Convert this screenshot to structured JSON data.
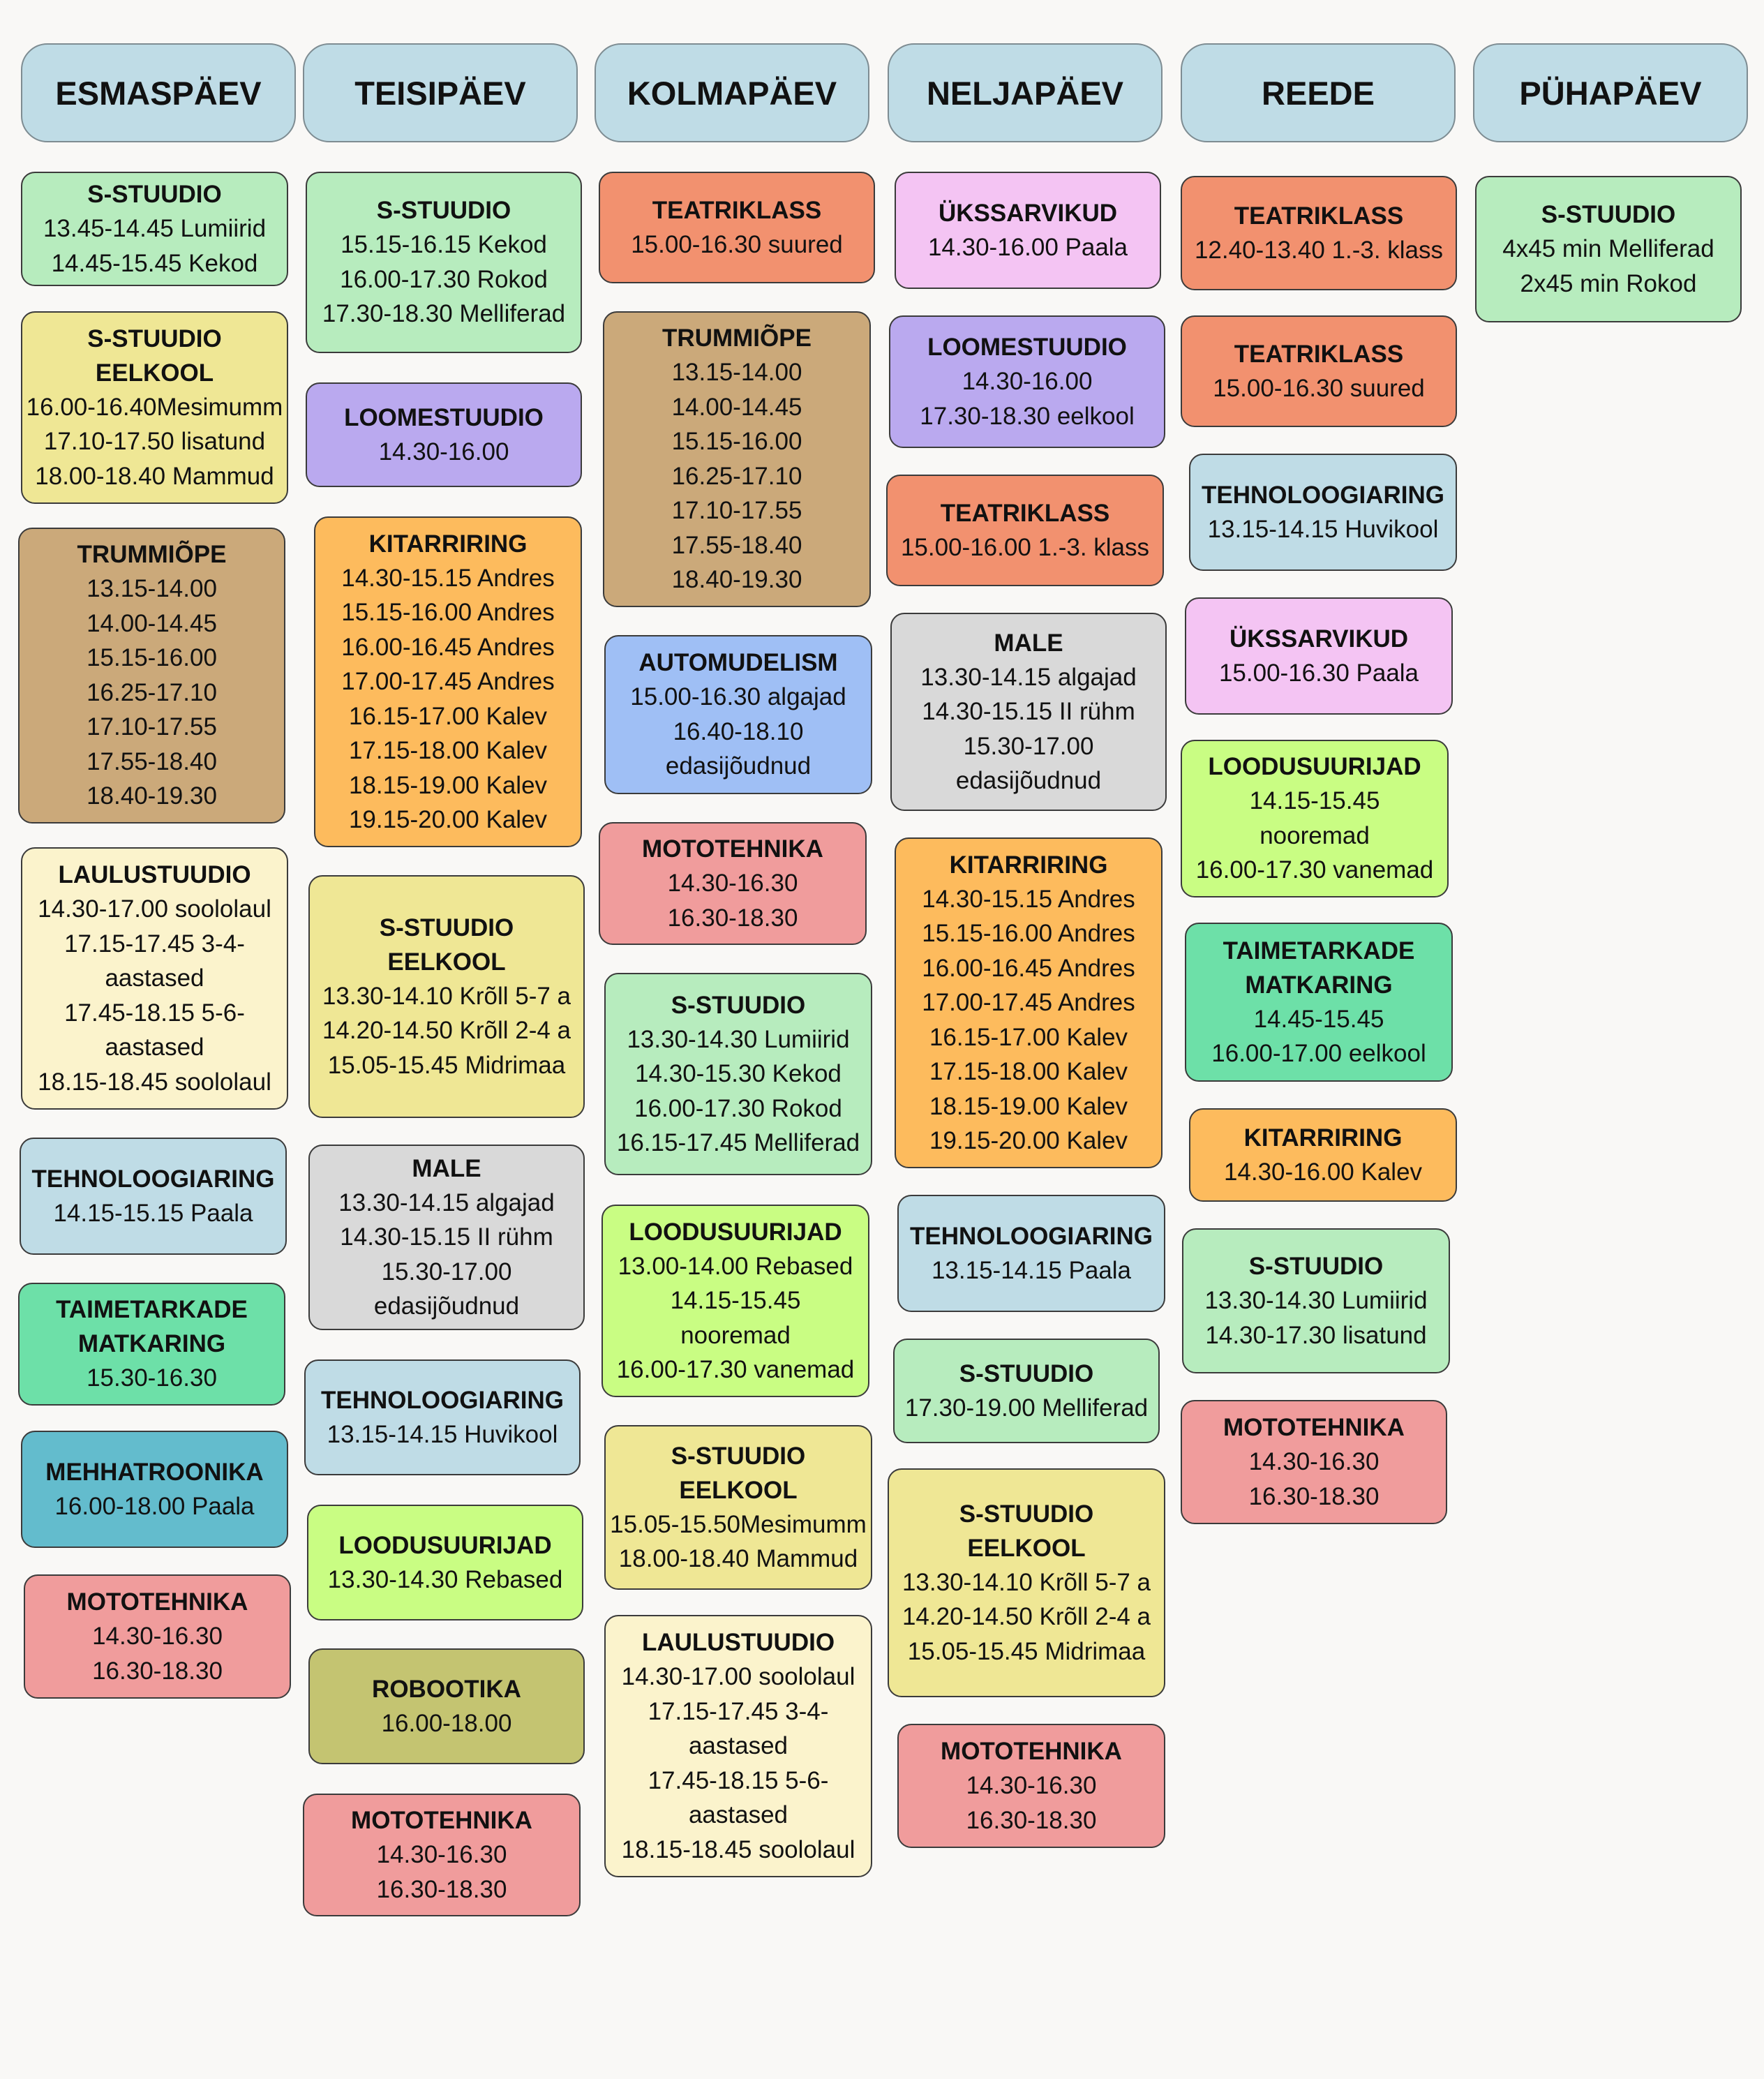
{
  "days": [
    {
      "name": "ESMASPÄEV",
      "cards": [
        {
          "title": "S-STUUDIO",
          "lines": [
            "13.45-14.45 Lumiirid",
            "14.45-15.45 Kekod"
          ]
        },
        {
          "title": "S-STUUDIO\nEELKOOL",
          "lines": [
            "16.00-16.40Mesimumm",
            "17.10-17.50 lisatund",
            "18.00-18.40 Mammud"
          ]
        },
        {
          "title": "TRUMMIÕPE",
          "lines": [
            "13.15-14.00",
            "14.00-14.45",
            "15.15-16.00",
            "16.25-17.10",
            "17.10-17.55",
            "17.55-18.40",
            "18.40-19.30"
          ]
        },
        {
          "title": "LAULUSTUUDIO",
          "lines": [
            "14.30-17.00 soololaul",
            "17.15-17.45 3-4-",
            "aastased",
            "17.45-18.15 5-6-",
            "aastased",
            "18.15-18.45 soololaul"
          ]
        },
        {
          "title": "TEHNOLOOGIARING",
          "lines": [
            "14.15-15.15 Paala"
          ]
        },
        {
          "title": "TAIMETARKADE\nMATKARING",
          "lines": [
            "15.30-16.30"
          ]
        },
        {
          "title": "MEHHATROONIKA",
          "lines": [
            "16.00-18.00 Paala"
          ]
        },
        {
          "title": "MOTOTEHNIKA",
          "lines": [
            "14.30-16.30",
            "16.30-18.30"
          ]
        }
      ]
    },
    {
      "name": "TEISIPÄEV",
      "cards": [
        {
          "title": "S-STUUDIO",
          "lines": [
            "15.15-16.15 Kekod",
            "16.00-17.30 Rokod",
            "17.30-18.30 Melliferad"
          ]
        },
        {
          "title": "LOOMESTUUDIO",
          "lines": [
            "14.30-16.00"
          ]
        },
        {
          "title": "KITARRIRING",
          "lines": [
            "14.30-15.15 Andres",
            "15.15-16.00 Andres",
            "16.00-16.45 Andres",
            "17.00-17.45 Andres",
            "16.15-17.00 Kalev",
            "17.15-18.00 Kalev",
            "18.15-19.00 Kalev",
            "19.15-20.00 Kalev"
          ]
        },
        {
          "title": "S-STUUDIO\nEELKOOL",
          "lines": [
            "13.30-14.10 Krõll 5-7 a",
            "14.20-14.50 Krõll 2-4 a",
            "15.05-15.45 Midrimaa"
          ]
        },
        {
          "title": "MALE",
          "lines": [
            "13.30-14.15 algajad",
            "14.30-15.15 II rühm",
            "15.30-17.00",
            "edasijõudnud"
          ]
        },
        {
          "title": "TEHNOLOOGIARING",
          "lines": [
            "13.15-14.15 Huvikool"
          ]
        },
        {
          "title": "LOODUSUURIJAD",
          "lines": [
            "13.30-14.30 Rebased"
          ]
        },
        {
          "title": "ROBOOTIKA",
          "lines": [
            "16.00-18.00"
          ]
        },
        {
          "title": "MOTOTEHNIKA",
          "lines": [
            "14.30-16.30",
            "16.30-18.30"
          ]
        }
      ]
    },
    {
      "name": "KOLMAPÄEV",
      "cards": [
        {
          "title": "TEATRIKLASS",
          "lines": [
            "15.00-16.30 suured"
          ]
        },
        {
          "title": "TRUMMIÕPE",
          "lines": [
            "13.15-14.00",
            "14.00-14.45",
            "15.15-16.00",
            "16.25-17.10",
            "17.10-17.55",
            "17.55-18.40",
            "18.40-19.30"
          ]
        },
        {
          "title": "AUTOMUDELISM",
          "lines": [
            "15.00-16.30 algajad",
            "16.40-18.10",
            "edasijõudnud"
          ]
        },
        {
          "title": "MOTOTEHNIKA",
          "lines": [
            "14.30-16.30",
            "16.30-18.30"
          ]
        },
        {
          "title": "S-STUUDIO",
          "lines": [
            "13.30-14.30 Lumiirid",
            "14.30-15.30 Kekod",
            "16.00-17.30 Rokod",
            "16.15-17.45 Melliferad"
          ]
        },
        {
          "title": "LOODUSUURIJAD",
          "lines": [
            "13.00-14.00 Rebased",
            "14.15-15.45",
            "nooremad",
            "16.00-17.30 vanemad"
          ]
        },
        {
          "title": "S-STUUDIO\nEELKOOL",
          "lines": [
            "15.05-15.50Mesimumm",
            "18.00-18.40 Mammud"
          ]
        },
        {
          "title": "LAULUSTUUDIO",
          "lines": [
            "14.30-17.00 soololaul",
            "17.15-17.45 3-4-",
            "aastased",
            "17.45-18.15 5-6-",
            "aastased",
            "18.15-18.45 soololaul"
          ]
        }
      ]
    },
    {
      "name": "NELJAPÄEV",
      "cards": [
        {
          "title": "ÜKSSARVIKUD",
          "lines": [
            "14.30-16.00 Paala"
          ]
        },
        {
          "title": "LOOMESTUUDIO",
          "lines": [
            "14.30-16.00",
            "17.30-18.30 eelkool"
          ]
        },
        {
          "title": "TEATRIKLASS",
          "lines": [
            "15.00-16.00 1.-3. klass"
          ]
        },
        {
          "title": "MALE",
          "lines": [
            "13.30-14.15 algajad",
            "14.30-15.15 II rühm",
            "15.30-17.00",
            "edasijõudnud"
          ]
        },
        {
          "title": "KITARRIRING",
          "lines": [
            "14.30-15.15 Andres",
            "15.15-16.00 Andres",
            "16.00-16.45 Andres",
            "17.00-17.45 Andres",
            "16.15-17.00 Kalev",
            "17.15-18.00 Kalev",
            "18.15-19.00 Kalev",
            "19.15-20.00 Kalev"
          ]
        },
        {
          "title": "TEHNOLOOGIARING",
          "lines": [
            "13.15-14.15 Paala"
          ]
        },
        {
          "title": "S-STUUDIO",
          "lines": [
            "17.30-19.00 Melliferad"
          ]
        },
        {
          "title": "S-STUUDIO\nEELKOOL",
          "lines": [
            "13.30-14.10 Krõll 5-7 a",
            "14.20-14.50 Krõll 2-4 a",
            "15.05-15.45 Midrimaa"
          ]
        },
        {
          "title": "MOTOTEHNIKA",
          "lines": [
            "14.30-16.30",
            "16.30-18.30"
          ]
        }
      ]
    },
    {
      "name": "REEDE",
      "cards": [
        {
          "title": "TEATRIKLASS",
          "lines": [
            "12.40-13.40 1.-3. klass"
          ]
        },
        {
          "title": "TEATRIKLASS",
          "lines": [
            "15.00-16.30 suured"
          ]
        },
        {
          "title": "TEHNOLOOGIARING",
          "lines": [
            "13.15-14.15 Huvikool"
          ]
        },
        {
          "title": "ÜKSSARVIKUD",
          "lines": [
            "15.00-16.30 Paala"
          ]
        },
        {
          "title": "LOODUSUURIJAD",
          "lines": [
            "14.15-15.45",
            "nooremad",
            "16.00-17.30 vanemad"
          ]
        },
        {
          "title": "TAIMETARKADE\nMATKARING",
          "lines": [
            "14.45-15.45",
            "16.00-17.00 eelkool"
          ]
        },
        {
          "title": "KITARRIRING",
          "lines": [
            "14.30-16.00 Kalev"
          ]
        },
        {
          "title": "S-STUUDIO",
          "lines": [
            "13.30-14.30 Lumiirid",
            "14.30-17.30 lisatund"
          ]
        },
        {
          "title": "MOTOTEHNIKA",
          "lines": [
            "14.30-16.30",
            "16.30-18.30"
          ]
        }
      ]
    },
    {
      "name": "PÜHAPÄEV",
      "cards": [
        {
          "title": "S-STUUDIO",
          "lines": [
            "4x45 min Melliferad",
            "2x45 min Rokod"
          ]
        }
      ]
    }
  ]
}
